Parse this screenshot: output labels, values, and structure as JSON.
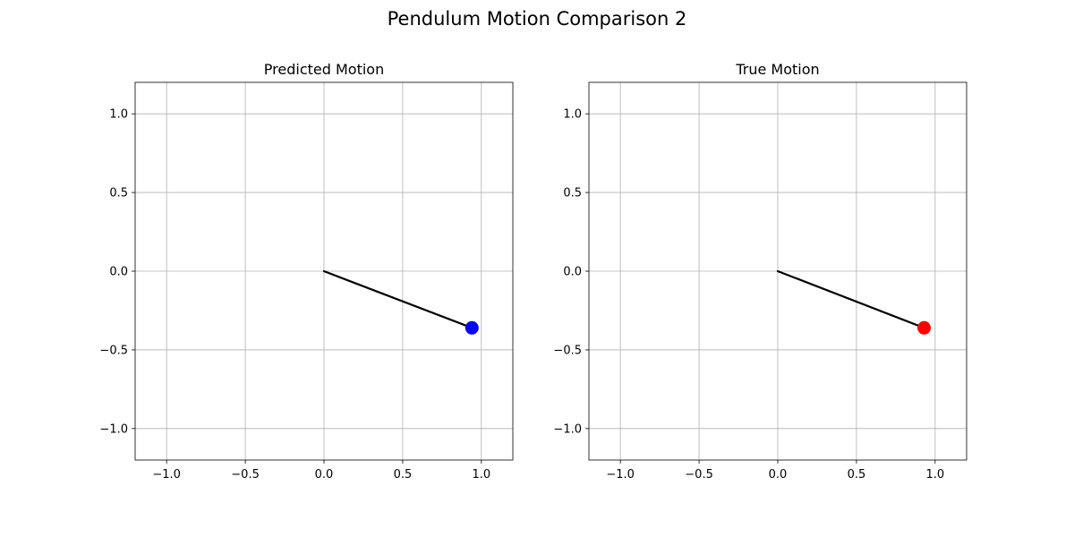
{
  "figure": {
    "suptitle": "Pendulum Motion Comparison 2"
  },
  "chart_data": [
    {
      "type": "scatter",
      "title": "Predicted Motion",
      "xlabel": "",
      "ylabel": "",
      "xlim": [
        -1.2,
        1.2
      ],
      "ylim": [
        -1.2,
        1.2
      ],
      "grid": true,
      "xticks": [
        -1.0,
        -0.5,
        0.0,
        0.5,
        1.0
      ],
      "yticks": [
        -1.0,
        -0.5,
        0.0,
        0.5,
        1.0
      ],
      "xtick_labels": [
        "−1.0",
        "−0.5",
        "0.0",
        "0.5",
        "1.0"
      ],
      "ytick_labels": [
        "−1.0",
        "−0.5",
        "0.0",
        "0.5",
        "1.0"
      ],
      "pivot": {
        "x": 0.0,
        "y": 0.0
      },
      "bob": {
        "x": 0.94,
        "y": -0.36
      },
      "rod_color": "#000000",
      "bob_color": "#0000ff"
    },
    {
      "type": "scatter",
      "title": "True Motion",
      "xlabel": "",
      "ylabel": "",
      "xlim": [
        -1.2,
        1.2
      ],
      "ylim": [
        -1.2,
        1.2
      ],
      "grid": true,
      "xticks": [
        -1.0,
        -0.5,
        0.0,
        0.5,
        1.0
      ],
      "yticks": [
        -1.0,
        -0.5,
        0.0,
        0.5,
        1.0
      ],
      "xtick_labels": [
        "−1.0",
        "−0.5",
        "0.0",
        "0.5",
        "1.0"
      ],
      "ytick_labels": [
        "−1.0",
        "−0.5",
        "0.0",
        "0.5",
        "1.0"
      ],
      "pivot": {
        "x": 0.0,
        "y": 0.0
      },
      "bob": {
        "x": 0.93,
        "y": -0.36
      },
      "rod_color": "#000000",
      "bob_color": "#ff0000"
    }
  ]
}
